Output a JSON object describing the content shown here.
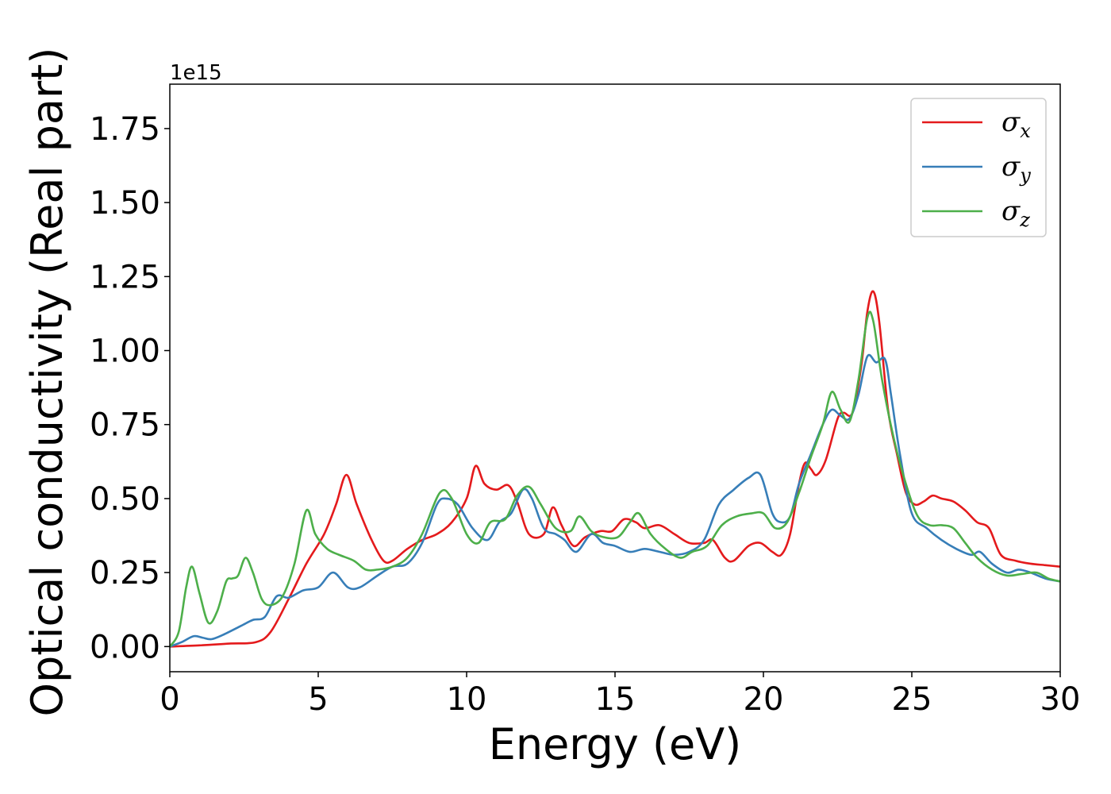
{
  "chart_data": {
    "type": "line",
    "xlabel": "Energy (eV)",
    "ylabel": "Optical conductivity (Real part)",
    "y_offset_label": "1e15",
    "xlim": [
      0,
      30
    ],
    "ylim": [
      -0.085,
      1.9
    ],
    "x_ticks": [
      0,
      5,
      10,
      15,
      20,
      25,
      30
    ],
    "x_tick_labels": [
      "0",
      "5",
      "10",
      "15",
      "20",
      "25",
      "30"
    ],
    "y_ticks": [
      0.0,
      0.25,
      0.5,
      0.75,
      1.0,
      1.25,
      1.5,
      1.75
    ],
    "y_tick_labels": [
      "0.00",
      "0.25",
      "0.50",
      "0.75",
      "1.00",
      "1.25",
      "1.50",
      "1.75"
    ],
    "grid": false,
    "legend_position": "top-right",
    "series": [
      {
        "name": "σx",
        "symbol": "σ",
        "subscript": "x",
        "color": "#e41a1c",
        "points": [
          [
            0,
            0
          ],
          [
            1,
            0.004
          ],
          [
            2,
            0.01
          ],
          [
            2.9,
            0.015
          ],
          [
            3.4,
            0.05
          ],
          [
            4,
            0.16
          ],
          [
            4.6,
            0.28
          ],
          [
            5.2,
            0.38
          ],
          [
            5.6,
            0.48
          ],
          [
            5.95,
            0.58
          ],
          [
            6.3,
            0.48
          ],
          [
            6.8,
            0.36
          ],
          [
            7.2,
            0.29
          ],
          [
            7.5,
            0.29
          ],
          [
            8,
            0.33
          ],
          [
            8.5,
            0.36
          ],
          [
            9,
            0.38
          ],
          [
            9.5,
            0.42
          ],
          [
            10,
            0.5
          ],
          [
            10.3,
            0.61
          ],
          [
            10.6,
            0.55
          ],
          [
            11,
            0.53
          ],
          [
            11.4,
            0.545
          ],
          [
            11.7,
            0.49
          ],
          [
            12.1,
            0.38
          ],
          [
            12.6,
            0.38
          ],
          [
            12.9,
            0.47
          ],
          [
            13.2,
            0.41
          ],
          [
            13.6,
            0.34
          ],
          [
            14,
            0.37
          ],
          [
            14.5,
            0.39
          ],
          [
            14.9,
            0.39
          ],
          [
            15.3,
            0.43
          ],
          [
            15.7,
            0.42
          ],
          [
            16,
            0.4
          ],
          [
            16.5,
            0.41
          ],
          [
            17,
            0.38
          ],
          [
            17.5,
            0.35
          ],
          [
            18,
            0.35
          ],
          [
            18.3,
            0.36
          ],
          [
            18.7,
            0.3
          ],
          [
            19,
            0.29
          ],
          [
            19.5,
            0.34
          ],
          [
            19.9,
            0.35
          ],
          [
            20.3,
            0.32
          ],
          [
            20.6,
            0.31
          ],
          [
            20.9,
            0.38
          ],
          [
            21.2,
            0.55
          ],
          [
            21.4,
            0.62
          ],
          [
            21.6,
            0.6
          ],
          [
            21.8,
            0.58
          ],
          [
            22.1,
            0.63
          ],
          [
            22.5,
            0.77
          ],
          [
            22.7,
            0.79
          ],
          [
            23,
            0.79
          ],
          [
            23.3,
            0.95
          ],
          [
            23.5,
            1.13
          ],
          [
            23.7,
            1.2
          ],
          [
            23.9,
            1.1
          ],
          [
            24.2,
            0.8
          ],
          [
            24.5,
            0.65
          ],
          [
            24.8,
            0.52
          ],
          [
            25.1,
            0.48
          ],
          [
            25.4,
            0.49
          ],
          [
            25.7,
            0.51
          ],
          [
            26,
            0.5
          ],
          [
            26.4,
            0.49
          ],
          [
            26.8,
            0.46
          ],
          [
            27.2,
            0.42
          ],
          [
            27.6,
            0.4
          ],
          [
            28,
            0.31
          ],
          [
            28.5,
            0.29
          ],
          [
            29,
            0.28
          ],
          [
            29.5,
            0.275
          ],
          [
            30,
            0.27
          ]
        ]
      },
      {
        "name": "σy",
        "symbol": "σ",
        "subscript": "y",
        "color": "#377eb8",
        "points": [
          [
            0,
            0
          ],
          [
            0.4,
            0.015
          ],
          [
            0.8,
            0.035
          ],
          [
            1.1,
            0.03
          ],
          [
            1.4,
            0.025
          ],
          [
            1.8,
            0.04
          ],
          [
            2.4,
            0.07
          ],
          [
            2.8,
            0.09
          ],
          [
            3.2,
            0.1
          ],
          [
            3.6,
            0.17
          ],
          [
            4,
            0.165
          ],
          [
            4.5,
            0.19
          ],
          [
            5,
            0.2
          ],
          [
            5.5,
            0.25
          ],
          [
            6,
            0.2
          ],
          [
            6.4,
            0.2
          ],
          [
            7,
            0.24
          ],
          [
            7.5,
            0.27
          ],
          [
            8,
            0.28
          ],
          [
            8.5,
            0.35
          ],
          [
            9,
            0.48
          ],
          [
            9.3,
            0.5
          ],
          [
            9.7,
            0.48
          ],
          [
            10.2,
            0.4
          ],
          [
            10.7,
            0.36
          ],
          [
            11.1,
            0.42
          ],
          [
            11.5,
            0.45
          ],
          [
            11.9,
            0.53
          ],
          [
            12.2,
            0.5
          ],
          [
            12.6,
            0.4
          ],
          [
            13,
            0.38
          ],
          [
            13.3,
            0.36
          ],
          [
            13.7,
            0.32
          ],
          [
            14.2,
            0.38
          ],
          [
            14.6,
            0.35
          ],
          [
            15,
            0.34
          ],
          [
            15.5,
            0.32
          ],
          [
            16,
            0.33
          ],
          [
            16.5,
            0.32
          ],
          [
            17,
            0.31
          ],
          [
            17.5,
            0.32
          ],
          [
            18,
            0.36
          ],
          [
            18.5,
            0.48
          ],
          [
            19,
            0.53
          ],
          [
            19.5,
            0.57
          ],
          [
            19.9,
            0.58
          ],
          [
            20.3,
            0.45
          ],
          [
            20.6,
            0.42
          ],
          [
            20.9,
            0.44
          ],
          [
            21.2,
            0.55
          ],
          [
            21.6,
            0.65
          ],
          [
            22,
            0.75
          ],
          [
            22.3,
            0.8
          ],
          [
            22.6,
            0.78
          ],
          [
            22.9,
            0.77
          ],
          [
            23.2,
            0.85
          ],
          [
            23.5,
            0.98
          ],
          [
            23.8,
            0.96
          ],
          [
            24.1,
            0.97
          ],
          [
            24.3,
            0.85
          ],
          [
            24.6,
            0.65
          ],
          [
            25,
            0.45
          ],
          [
            25.5,
            0.4
          ],
          [
            26,
            0.36
          ],
          [
            26.5,
            0.33
          ],
          [
            27,
            0.31
          ],
          [
            27.3,
            0.32
          ],
          [
            27.7,
            0.28
          ],
          [
            28.2,
            0.25
          ],
          [
            28.6,
            0.26
          ],
          [
            29,
            0.25
          ],
          [
            29.5,
            0.23
          ],
          [
            30,
            0.22
          ]
        ]
      },
      {
        "name": "σz",
        "symbol": "σ",
        "subscript": "z",
        "color": "#4daf4a",
        "points": [
          [
            0,
            0
          ],
          [
            0.3,
            0.05
          ],
          [
            0.55,
            0.2
          ],
          [
            0.75,
            0.27
          ],
          [
            1,
            0.18
          ],
          [
            1.3,
            0.08
          ],
          [
            1.6,
            0.12
          ],
          [
            1.9,
            0.22
          ],
          [
            2.1,
            0.23
          ],
          [
            2.3,
            0.24
          ],
          [
            2.55,
            0.3
          ],
          [
            2.8,
            0.25
          ],
          [
            3.1,
            0.16
          ],
          [
            3.4,
            0.14
          ],
          [
            3.8,
            0.17
          ],
          [
            4.2,
            0.28
          ],
          [
            4.6,
            0.46
          ],
          [
            4.9,
            0.38
          ],
          [
            5.3,
            0.33
          ],
          [
            5.7,
            0.31
          ],
          [
            6.2,
            0.29
          ],
          [
            6.6,
            0.26
          ],
          [
            7,
            0.26
          ],
          [
            7.5,
            0.27
          ],
          [
            8,
            0.3
          ],
          [
            8.5,
            0.38
          ],
          [
            9.1,
            0.52
          ],
          [
            9.5,
            0.5
          ],
          [
            10,
            0.38
          ],
          [
            10.4,
            0.35
          ],
          [
            10.8,
            0.42
          ],
          [
            11.3,
            0.43
          ],
          [
            11.7,
            0.51
          ],
          [
            12.1,
            0.54
          ],
          [
            12.5,
            0.48
          ],
          [
            13,
            0.4
          ],
          [
            13.5,
            0.39
          ],
          [
            13.8,
            0.44
          ],
          [
            14.2,
            0.39
          ],
          [
            14.6,
            0.37
          ],
          [
            15.1,
            0.37
          ],
          [
            15.5,
            0.42
          ],
          [
            15.8,
            0.45
          ],
          [
            16.2,
            0.38
          ],
          [
            16.7,
            0.33
          ],
          [
            17.2,
            0.3
          ],
          [
            17.6,
            0.32
          ],
          [
            18.1,
            0.34
          ],
          [
            18.6,
            0.41
          ],
          [
            19.1,
            0.44
          ],
          [
            19.6,
            0.45
          ],
          [
            20,
            0.45
          ],
          [
            20.4,
            0.4
          ],
          [
            20.8,
            0.42
          ],
          [
            21.2,
            0.52
          ],
          [
            21.6,
            0.64
          ],
          [
            22,
            0.75
          ],
          [
            22.3,
            0.86
          ],
          [
            22.6,
            0.8
          ],
          [
            22.9,
            0.76
          ],
          [
            23.2,
            0.9
          ],
          [
            23.5,
            1.11
          ],
          [
            23.7,
            1.1
          ],
          [
            24,
            0.9
          ],
          [
            24.4,
            0.7
          ],
          [
            24.8,
            0.55
          ],
          [
            25.2,
            0.44
          ],
          [
            25.6,
            0.41
          ],
          [
            26,
            0.41
          ],
          [
            26.4,
            0.4
          ],
          [
            26.8,
            0.35
          ],
          [
            27.2,
            0.3
          ],
          [
            27.7,
            0.26
          ],
          [
            28.2,
            0.24
          ],
          [
            28.7,
            0.245
          ],
          [
            29.2,
            0.25
          ],
          [
            29.6,
            0.23
          ],
          [
            30,
            0.22
          ]
        ]
      }
    ]
  }
}
